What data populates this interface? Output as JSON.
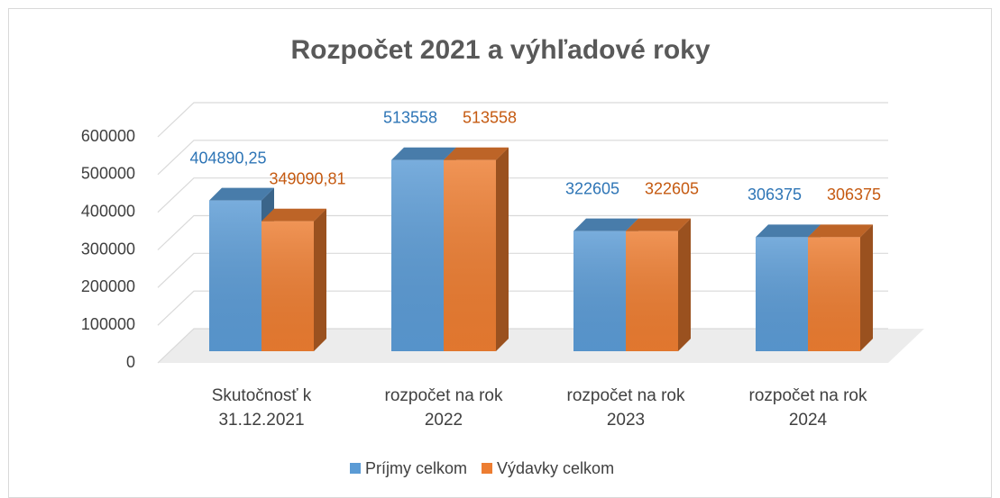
{
  "chart_data": {
    "type": "bar3d",
    "title": "Rozpočet 2021 a výhľadové roky",
    "categories": [
      "Skutočnosť k 31.12.2021",
      "rozpočet na rok 2022",
      "rozpočet na rok 2023",
      "rozpočet na rok 2024"
    ],
    "series": [
      {
        "name": "Príjmy celkom",
        "color": "#5b9bd5",
        "label_color": "#2e75b6",
        "values": [
          404890.25,
          513558,
          322605,
          306375
        ],
        "value_labels": [
          "404890,25",
          "513558",
          "322605",
          "306375"
        ]
      },
      {
        "name": "Výdavky celkom",
        "color": "#ed7d31",
        "label_color": "#c55a11",
        "values": [
          349090.81,
          513558,
          322605,
          306375
        ],
        "value_labels": [
          "349090,81",
          "513558",
          "322605",
          "306375"
        ]
      }
    ],
    "ylim": [
      0,
      600000
    ],
    "yticks": [
      0,
      100000,
      200000,
      300000,
      400000,
      500000,
      600000
    ],
    "grid": true,
    "legend": "bottom"
  }
}
